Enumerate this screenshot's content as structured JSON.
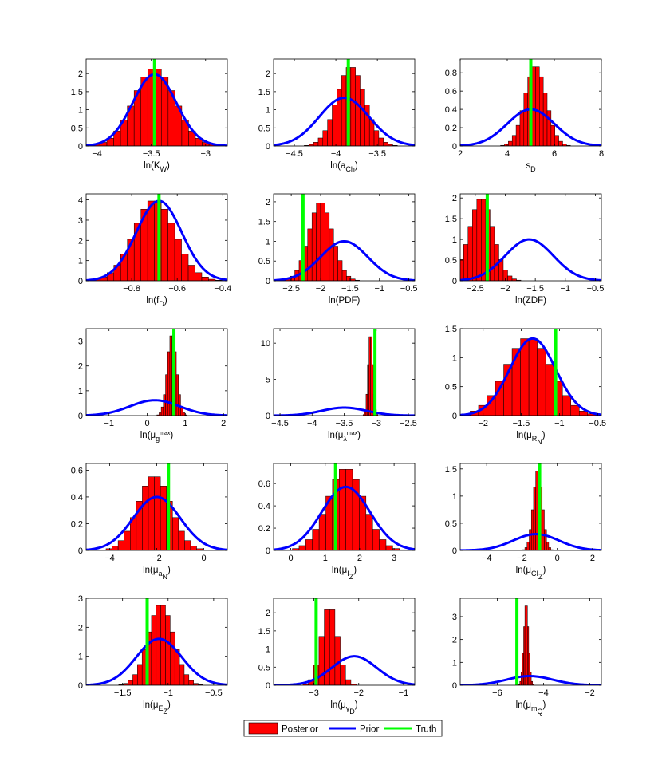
{
  "legend": {
    "entries": [
      {
        "name": "Posterior",
        "color": "#ff0000",
        "style": "patch"
      },
      {
        "name": "Prior",
        "color": "#0000ff",
        "style": "line"
      },
      {
        "name": "Truth",
        "color": "#00ff00",
        "style": "line"
      }
    ],
    "placement": "bottom-center"
  },
  "chart_data": [
    {
      "type": "bar",
      "xlabel": "ln(K_W)",
      "xlim": [
        -4.1,
        -2.8
      ],
      "ylim": [
        0,
        2.4
      ],
      "xticks": [
        {
          "v": -4,
          "t": "−4"
        },
        {
          "v": -3.5,
          "t": "−3.5"
        },
        {
          "v": -3,
          "t": "−3"
        }
      ],
      "yticks": [
        {
          "v": 0,
          "t": "0"
        },
        {
          "v": 0.5,
          "t": "0.5"
        },
        {
          "v": 1,
          "t": "1"
        },
        {
          "v": 1.5,
          "t": "1.5"
        },
        {
          "v": 2,
          "t": "2"
        }
      ],
      "hist": {
        "mean": -3.47,
        "sd": 0.19,
        "peak": 2.15,
        "bins": 20
      },
      "prior": {
        "mean": -3.47,
        "sd": 0.2,
        "peak": 1.98
      },
      "truth": -3.47
    },
    {
      "type": "bar",
      "xlabel": "ln(a_Ch)",
      "xlim": [
        -4.75,
        -3.05
      ],
      "ylim": [
        0,
        2.4
      ],
      "xticks": [
        {
          "v": -4.5,
          "t": "−4.5"
        },
        {
          "v": -4,
          "t": "−4"
        },
        {
          "v": -3.5,
          "t": "−3.5"
        }
      ],
      "yticks": [
        {
          "v": 0,
          "t": "0"
        },
        {
          "v": 0.5,
          "t": "0.5"
        },
        {
          "v": 1,
          "t": "1"
        },
        {
          "v": 1.5,
          "t": "1.5"
        },
        {
          "v": 2,
          "t": "2"
        }
      ],
      "hist": {
        "mean": -3.82,
        "sd": 0.17,
        "peak": 2.2,
        "bins": 20
      },
      "prior": {
        "mean": -3.9,
        "sd": 0.3,
        "peak": 1.33
      },
      "truth": -3.85
    },
    {
      "type": "bar",
      "xlabel": "s_D",
      "xlim": [
        2,
        8
      ],
      "ylim": [
        0,
        0.95
      ],
      "xticks": [
        {
          "v": 2,
          "t": "2"
        },
        {
          "v": 4,
          "t": "4"
        },
        {
          "v": 6,
          "t": "6"
        },
        {
          "v": 8,
          "t": "8"
        }
      ],
      "yticks": [
        {
          "v": 0,
          "t": "0"
        },
        {
          "v": 0.2,
          "t": "0.2"
        },
        {
          "v": 0.4,
          "t": "0.4"
        },
        {
          "v": 0.6,
          "t": "0.6"
        },
        {
          "v": 0.8,
          "t": "0.8"
        }
      ],
      "hist": {
        "mean": 5.2,
        "sd": 0.45,
        "peak": 0.88,
        "bins": 18
      },
      "prior": {
        "mean": 5,
        "sd": 1,
        "peak": 0.4
      },
      "truth": 5
    },
    {
      "type": "bar",
      "xlabel": "ln(f_D)",
      "xlim": [
        -1,
        -0.38
      ],
      "ylim": [
        0,
        4.3
      ],
      "xticks": [
        {
          "v": -0.8,
          "t": "−0.8"
        },
        {
          "v": -0.6,
          "t": "−0.6"
        },
        {
          "v": -0.4,
          "t": "−0.4"
        }
      ],
      "yticks": [
        {
          "v": 0,
          "t": "0"
        },
        {
          "v": 1,
          "t": "1"
        },
        {
          "v": 2,
          "t": "2"
        },
        {
          "v": 3,
          "t": "3"
        },
        {
          "v": 4,
          "t": "4"
        }
      ],
      "hist": {
        "mean": -0.7,
        "sd": 0.09,
        "peak": 4,
        "bins": 20
      },
      "prior": {
        "mean": -0.68,
        "sd": 0.1,
        "peak": 3.95
      },
      "truth": -0.68
    },
    {
      "type": "bar",
      "xlabel": "ln(PDF)",
      "xlim": [
        -2.8,
        -0.4
      ],
      "ylim": [
        0,
        2.2
      ],
      "xticks": [
        {
          "v": -2.5,
          "t": "−2.5"
        },
        {
          "v": -2,
          "t": "−2"
        },
        {
          "v": -1.5,
          "t": "−1.5"
        },
        {
          "v": -1,
          "t": "−1"
        },
        {
          "v": -0.5,
          "t": "−0.5"
        }
      ],
      "yticks": [
        {
          "v": 0,
          "t": "0"
        },
        {
          "v": 0.5,
          "t": "0.5"
        },
        {
          "v": 1,
          "t": "1"
        },
        {
          "v": 1.5,
          "t": "1.5"
        },
        {
          "v": 2,
          "t": "2"
        }
      ],
      "hist": {
        "mean": -2.0,
        "sd": 0.2,
        "peak": 2.0,
        "bins": 18
      },
      "prior": {
        "mean": -1.6,
        "sd": 0.4,
        "peak": 1
      },
      "truth": -2.3
    },
    {
      "type": "bar",
      "xlabel": "ln(ZDF)",
      "xlim": [
        -2.75,
        -0.4
      ],
      "ylim": [
        0,
        2.1
      ],
      "xticks": [
        {
          "v": -2.5,
          "t": "−2.5"
        },
        {
          "v": -2,
          "t": "−2"
        },
        {
          "v": -1.5,
          "t": "−1.5"
        },
        {
          "v": -1,
          "t": "−1"
        },
        {
          "v": -0.5,
          "t": "−0.5"
        }
      ],
      "yticks": [
        {
          "v": 0,
          "t": "0"
        },
        {
          "v": 0.5,
          "t": "0.5"
        },
        {
          "v": 1,
          "t": "1"
        },
        {
          "v": 1.5,
          "t": "1.5"
        },
        {
          "v": 2,
          "t": "2"
        }
      ],
      "hist": {
        "mean": -2.4,
        "sd": 0.2,
        "peak": 2.0,
        "bins": 18
      },
      "prior": {
        "mean": -1.6,
        "sd": 0.4,
        "peak": 1
      },
      "truth": -2.3
    },
    {
      "type": "bar",
      "xlabel": "ln(μ_g^max)",
      "xlim": [
        -1.6,
        2.1
      ],
      "ylim": [
        0,
        3.5
      ],
      "xticks": [
        {
          "v": -1,
          "t": "−1"
        },
        {
          "v": 0,
          "t": "0"
        },
        {
          "v": 1,
          "t": "1"
        },
        {
          "v": 2,
          "t": "2"
        }
      ],
      "yticks": [
        {
          "v": 0,
          "t": "0"
        },
        {
          "v": 1,
          "t": "1"
        },
        {
          "v": 2,
          "t": "2"
        },
        {
          "v": 3,
          "t": "3"
        }
      ],
      "hist": {
        "mean": 0.65,
        "sd": 0.12,
        "peak": 3.3,
        "bins": 14
      },
      "prior": {
        "mean": 0.2,
        "sd": 0.65,
        "peak": 0.62
      },
      "truth": 0.7
    },
    {
      "type": "bar",
      "xlabel": "ln(μ_λ^max)",
      "xlim": [
        -4.6,
        -2.4
      ],
      "ylim": [
        0,
        12
      ],
      "xticks": [
        {
          "v": -4.5,
          "t": "−4.5"
        },
        {
          "v": -4,
          "t": "−4"
        },
        {
          "v": -3.5,
          "t": "−3.5"
        },
        {
          "v": -3,
          "t": "−3"
        },
        {
          "v": -2.5,
          "t": "−2.5"
        }
      ],
      "yticks": [
        {
          "v": 0,
          "t": "0"
        },
        {
          "v": 5,
          "t": "5"
        },
        {
          "v": 10,
          "t": "10"
        }
      ],
      "hist": {
        "mean": -3.09,
        "sd": 0.035,
        "peak": 11.5,
        "bins": 10
      },
      "prior": {
        "mean": -3.5,
        "sd": 0.35,
        "peak": 1.1
      },
      "truth": -3.02
    },
    {
      "type": "bar",
      "xlabel": "ln(μ_R_N)",
      "xlim": [
        -2.3,
        -0.45
      ],
      "ylim": [
        0,
        1.5
      ],
      "xticks": [
        {
          "v": -2,
          "t": "−2"
        },
        {
          "v": -1.5,
          "t": "−1.5"
        },
        {
          "v": -1,
          "t": "−1"
        },
        {
          "v": -0.5,
          "t": "−0.5"
        }
      ],
      "yticks": [
        {
          "v": 0,
          "t": "0"
        },
        {
          "v": 0.5,
          "t": "0.5"
        },
        {
          "v": 1,
          "t": "1"
        },
        {
          "v": 1.5,
          "t": "1.5"
        }
      ],
      "hist": {
        "mean": -1.4,
        "sd": 0.3,
        "peak": 1.35,
        "bins": 18
      },
      "prior": {
        "mean": -1.35,
        "sd": 0.3,
        "peak": 1.33
      },
      "truth": -1.05
    },
    {
      "type": "bar",
      "xlabel": "ln(μ_a_N)",
      "xlim": [
        -5,
        1
      ],
      "ylim": [
        0,
        0.65
      ],
      "xticks": [
        {
          "v": -4,
          "t": "−4"
        },
        {
          "v": -2,
          "t": "−2"
        },
        {
          "v": 0,
          "t": "0"
        }
      ],
      "yticks": [
        {
          "v": 0,
          "t": "0"
        },
        {
          "v": 0.2,
          "t": "0.2"
        },
        {
          "v": 0.4,
          "t": "0.4"
        },
        {
          "v": 0.6,
          "t": "0.6"
        }
      ],
      "hist": {
        "mean": -2.1,
        "sd": 0.7,
        "peak": 0.56,
        "bins": 18
      },
      "prior": {
        "mean": -2,
        "sd": 1,
        "peak": 0.4
      },
      "truth": -1.5
    },
    {
      "type": "bar",
      "xlabel": "ln(μ_I_Z)",
      "xlim": [
        -0.5,
        3.6
      ],
      "ylim": [
        0,
        0.78
      ],
      "xticks": [
        {
          "v": 0,
          "t": "0"
        },
        {
          "v": 1,
          "t": "1"
        },
        {
          "v": 2,
          "t": "2"
        },
        {
          "v": 3,
          "t": "3"
        }
      ],
      "yticks": [
        {
          "v": 0,
          "t": "0"
        },
        {
          "v": 0.2,
          "t": "0.2"
        },
        {
          "v": 0.4,
          "t": "0.4"
        },
        {
          "v": 0.6,
          "t": "0.6"
        }
      ],
      "hist": {
        "mean": 1.6,
        "sd": 0.53,
        "peak": 0.74,
        "bins": 18
      },
      "prior": {
        "mean": 1.6,
        "sd": 0.7,
        "peak": 0.57
      },
      "truth": 1.3
    },
    {
      "type": "bar",
      "xlabel": "ln(μ_CI_Z)",
      "xlim": [
        -5.5,
        2.5
      ],
      "ylim": [
        0,
        1.6
      ],
      "xticks": [
        {
          "v": -4,
          "t": "−4"
        },
        {
          "v": -2,
          "t": "−2"
        },
        {
          "v": 0,
          "t": "0"
        },
        {
          "v": 2,
          "t": "2"
        }
      ],
      "yticks": [
        {
          "v": 0,
          "t": "0"
        },
        {
          "v": 0.5,
          "t": "0.5"
        },
        {
          "v": 1,
          "t": "1"
        },
        {
          "v": 1.5,
          "t": "1.5"
        }
      ],
      "hist": {
        "mean": -1.1,
        "sd": 0.26,
        "peak": 1.5,
        "bins": 14
      },
      "prior": {
        "mean": -1.2,
        "sd": 1.3,
        "peak": 0.3
      },
      "truth": -1.0
    },
    {
      "type": "bar",
      "xlabel": "ln(μ_E_Z)",
      "xlim": [
        -1.9,
        -0.35
      ],
      "ylim": [
        0,
        3
      ],
      "xticks": [
        {
          "v": -1.5,
          "t": "−1.5"
        },
        {
          "v": -1,
          "t": "−1"
        },
        {
          "v": -0.5,
          "t": "−0.5"
        }
      ],
      "yticks": [
        {
          "v": 0,
          "t": "0"
        },
        {
          "v": 1,
          "t": "1"
        },
        {
          "v": 2,
          "t": "2"
        },
        {
          "v": 3,
          "t": "3"
        }
      ],
      "hist": {
        "mean": -1.08,
        "sd": 0.14,
        "peak": 2.8,
        "bins": 18
      },
      "prior": {
        "mean": -1.1,
        "sd": 0.25,
        "peak": 1.6
      },
      "truth": -1.23
    },
    {
      "type": "bar",
      "xlabel": "ln(μ_γ_D)",
      "xlim": [
        -3.9,
        -0.75
      ],
      "ylim": [
        0,
        2.4
      ],
      "xticks": [
        {
          "v": -3,
          "t": "−3"
        },
        {
          "v": -2,
          "t": "−2"
        },
        {
          "v": -1,
          "t": "−1"
        }
      ],
      "yticks": [
        {
          "v": 0,
          "t": "0"
        },
        {
          "v": 0.5,
          "t": "0.5"
        },
        {
          "v": 1,
          "t": "1"
        },
        {
          "v": 1.5,
          "t": "1.5"
        },
        {
          "v": 2,
          "t": "2"
        }
      ],
      "hist": {
        "mean": -2.65,
        "sd": 0.18,
        "peak": 2.2,
        "bins": 10
      },
      "prior": {
        "mean": -2.1,
        "sd": 0.5,
        "peak": 0.8
      },
      "truth": -2.95
    },
    {
      "type": "bar",
      "xlabel": "ln(μ_m_Q)",
      "xlim": [
        -7.6,
        -1.5
      ],
      "ylim": [
        0,
        3.8
      ],
      "xticks": [
        {
          "v": -6,
          "t": "−6"
        },
        {
          "v": -4,
          "t": "−4"
        },
        {
          "v": -2,
          "t": "−2"
        }
      ],
      "yticks": [
        {
          "v": 0,
          "t": "0"
        },
        {
          "v": 1,
          "t": "1"
        },
        {
          "v": 2,
          "t": "2"
        },
        {
          "v": 3,
          "t": "3"
        }
      ],
      "hist": {
        "mean": -4.75,
        "sd": 0.1,
        "peak": 3.6,
        "bins": 12
      },
      "prior": {
        "mean": -4.6,
        "sd": 1,
        "peak": 0.4
      },
      "truth": -5.15
    }
  ]
}
